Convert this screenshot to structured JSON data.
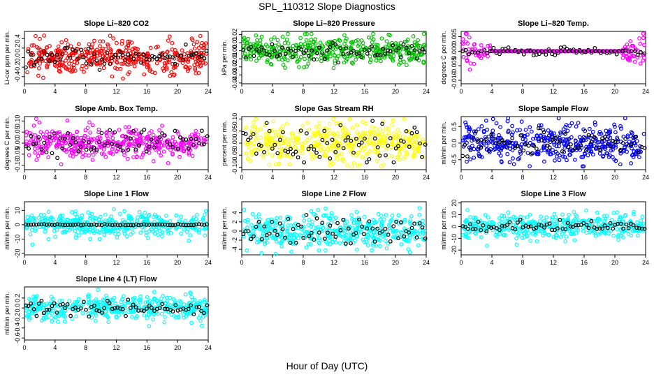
{
  "figure": {
    "title": "SPL_110312  Slope Diagnostics",
    "xlabel": "Hour of Day (UTC)"
  },
  "chart_data": [
    {
      "type": "scatter",
      "title": "Slope Li–820 CO2",
      "ylabel": "Li-cor ppm per min.",
      "xlim": [
        0,
        24
      ],
      "ylim": [
        -0.55,
        0.55
      ],
      "xticks": [
        "0",
        "4",
        "8",
        "12",
        "16",
        "20",
        "24"
      ],
      "yticks": [
        "-0.4",
        "-0.2",
        "0.0",
        "0.2",
        "0.4"
      ],
      "series": [
        {
          "color": "#ff0000",
          "pattern": "dense",
          "count": 420,
          "min": -0.45,
          "max": 0.5,
          "spread": 0.17
        },
        {
          "color": "#000000",
          "pattern": "sparse",
          "count": 70,
          "min": -0.35,
          "max": 0.35,
          "spread": 0.12
        }
      ]
    },
    {
      "type": "scatter",
      "title": "Slope Li–820 Pressure",
      "ylabel": "kPa per min.",
      "xlim": [
        0,
        24
      ],
      "ylim": [
        -0.041,
        0.024
      ],
      "xticks": [
        "0",
        "4",
        "8",
        "12",
        "16",
        "20",
        "24"
      ],
      "yticks": [
        "-0.04",
        "-0.03",
        "-0.02",
        "-0.01",
        "0.00",
        "0.01",
        "0.02"
      ],
      "series": [
        {
          "color": "#00c000",
          "pattern": "dense",
          "count": 420,
          "min": -0.038,
          "max": 0.021,
          "spread": 0.008
        },
        {
          "color": "#000000",
          "pattern": "sparse",
          "count": 70,
          "min": -0.02,
          "max": 0.01,
          "spread": 0.005
        }
      ]
    },
    {
      "type": "scatter",
      "title": "Slope Li–820 Temp.",
      "ylabel": "degrees C per min.",
      "xlim": [
        0,
        24
      ],
      "ylim": [
        -0.0112,
        0.0068
      ],
      "xticks": [
        "0",
        "4",
        "8",
        "12",
        "16",
        "20",
        "24"
      ],
      "yticks": [
        "-0.010",
        "-0.005",
        "0.000",
        "0.005"
      ],
      "series": [
        {
          "color": "#ff00ff",
          "pattern": "edges",
          "count": 300,
          "min": -0.01,
          "max": 0.006,
          "spread": 0.0025
        },
        {
          "color": "#000000",
          "pattern": "sparse",
          "count": 60,
          "min": -0.009,
          "max": 0.004,
          "spread": 0.0008
        }
      ]
    },
    {
      "type": "scatter",
      "title": "Slope Amb. Box Temp.",
      "ylabel": "degrees C per min.",
      "xlim": [
        0,
        24
      ],
      "ylim": [
        -0.12,
        0.12
      ],
      "xticks": [
        "0",
        "4",
        "8",
        "12",
        "16",
        "20",
        "24"
      ],
      "yticks": [
        "-0.10",
        "-0.05",
        "0.00",
        "0.05",
        "0.10"
      ],
      "series": [
        {
          "color": "#ff00ff",
          "pattern": "dense",
          "count": 420,
          "min": -0.1,
          "max": 0.11,
          "spread": 0.035
        },
        {
          "color": "#000000",
          "pattern": "sparse",
          "count": 70,
          "min": -0.08,
          "max": 0.09,
          "spread": 0.03
        }
      ]
    },
    {
      "type": "scatter",
      "title": "Slope Gas Stream RH",
      "ylabel": "percent per min.",
      "xlim": [
        0,
        24
      ],
      "ylim": [
        -0.11,
        0.11
      ],
      "xticks": [
        "0",
        "4",
        "8",
        "12",
        "16",
        "20",
        "24"
      ],
      "yticks": [
        "-0.10",
        "-0.05",
        "0.00",
        "0.05",
        "0.10"
      ],
      "series": [
        {
          "color": "#ffff00",
          "pattern": "dense",
          "count": 420,
          "min": -0.1,
          "max": 0.1,
          "spread": 0.04
        },
        {
          "color": "#000000",
          "pattern": "sparse",
          "count": 70,
          "min": -0.08,
          "max": 0.1,
          "spread": 0.035
        }
      ]
    },
    {
      "type": "scatter",
      "title": "Slope Sample Flow",
      "ylabel": "ml/min per min.",
      "xlim": [
        0,
        24
      ],
      "ylim": [
        -0.8,
        0.8
      ],
      "xticks": [
        "0",
        "4",
        "8",
        "12",
        "16",
        "20",
        "24"
      ],
      "yticks": [
        "-0.5",
        "0.0",
        "0.5"
      ],
      "series": [
        {
          "color": "#0000ff",
          "pattern": "dense",
          "count": 420,
          "min": -0.7,
          "max": 0.75,
          "spread": 0.28
        },
        {
          "color": "#000000",
          "pattern": "sparse",
          "count": 70,
          "min": -0.4,
          "max": 0.7,
          "spread": 0.2
        }
      ]
    },
    {
      "type": "scatter",
      "title": "Slope Line 1 Flow",
      "ylabel": "ml/min per min.",
      "xlim": [
        0,
        24
      ],
      "ylim": [
        -21,
        16
      ],
      "xticks": [
        "0",
        "4",
        "8",
        "12",
        "16",
        "20",
        "24"
      ],
      "yticks": [
        "-20",
        "-10",
        "0",
        "10"
      ],
      "series": [
        {
          "color": "#00ffff",
          "pattern": "dense",
          "count": 420,
          "min": -20,
          "max": 15,
          "spread": 4
        },
        {
          "color": "#000000",
          "pattern": "flat",
          "count": 70,
          "min": -0.5,
          "max": 0.5,
          "spread": 0.2
        }
      ]
    },
    {
      "type": "scatter",
      "title": "Slope Line 2 Flow",
      "ylabel": "ml/min per min.",
      "xlim": [
        0,
        24
      ],
      "ylim": [
        -5.2,
        6.4
      ],
      "xticks": [
        "0",
        "4",
        "8",
        "12",
        "16",
        "20",
        "24"
      ],
      "yticks": [
        "-4",
        "-2",
        "0",
        "2",
        "4"
      ],
      "series": [
        {
          "color": "#00ffff",
          "pattern": "dense",
          "count": 420,
          "min": -5,
          "max": 6,
          "spread": 1.8
        },
        {
          "color": "#000000",
          "pattern": "sparse",
          "count": 70,
          "min": -4,
          "max": 3.5,
          "spread": 1.6
        }
      ]
    },
    {
      "type": "scatter",
      "title": "Slope Line 3 Flow",
      "ylabel": "ml/min per min.",
      "xlim": [
        0,
        24
      ],
      "ylim": [
        -24,
        21
      ],
      "xticks": [
        "0",
        "4",
        "8",
        "12",
        "16",
        "20",
        "24"
      ],
      "yticks": [
        "-20",
        "-10",
        "0",
        "10",
        "20"
      ],
      "series": [
        {
          "color": "#00ffff",
          "pattern": "dense",
          "count": 420,
          "min": -22,
          "max": 20,
          "spread": 5
        },
        {
          "color": "#000000",
          "pattern": "sparse",
          "count": 70,
          "min": -6,
          "max": 6,
          "spread": 2.5
        }
      ]
    },
    {
      "type": "scatter",
      "title": "Slope Line 4 (LT) Flow",
      "ylabel": "ml/min per min.",
      "xlim": [
        0,
        24
      ],
      "ylim": [
        -0.64,
        0.42
      ],
      "xticks": [
        "0",
        "4",
        "8",
        "12",
        "16",
        "20",
        "24"
      ],
      "yticks": [
        "-0.6",
        "-0.4",
        "-0.2",
        "0.0",
        "0.2"
      ],
      "series": [
        {
          "color": "#00ffff",
          "pattern": "dense",
          "count": 420,
          "min": -0.6,
          "max": 0.38,
          "spread": 0.12
        },
        {
          "color": "#000000",
          "pattern": "sparse",
          "count": 70,
          "min": -0.2,
          "max": 0.2,
          "spread": 0.08
        }
      ]
    }
  ]
}
